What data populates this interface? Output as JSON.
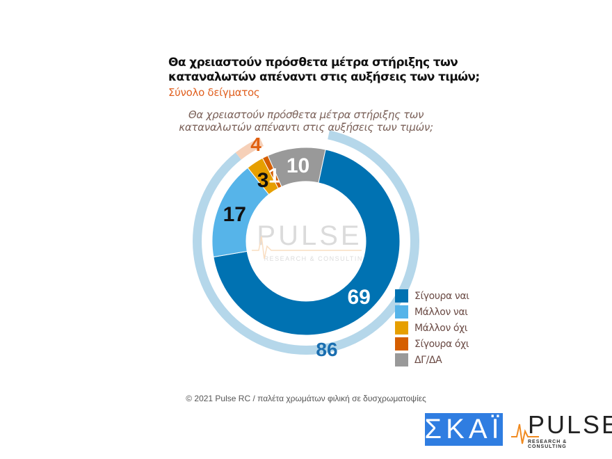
{
  "header": {
    "title_line1": "Θα χρειαστούν πρόσθετα μέτρα στήριξης των",
    "title_line2": "καταναλωτών απέναντι στις αυξήσεις των τιμών;",
    "subtitle": "Σύνολο δείγματος"
  },
  "chart_data": {
    "type": "donut",
    "title_line1": "Θα χρειαστούν πρόσθετα μέτρα στήριξης των",
    "title_line2": "καταναλωτών απέναντι στις αυξήσεις των τιμών;",
    "inner": {
      "categories": [
        "Σίγουρα ναι",
        "Μάλλον ναι",
        "Μάλλον όχι",
        "Σίγουρα όχι",
        "ΔΓ/ΔΑ"
      ],
      "values": [
        69,
        17,
        3,
        1,
        10
      ],
      "colors": [
        "#0072b2",
        "#56b4e9",
        "#e69f00",
        "#d55e00",
        "#999999"
      ],
      "label_colors": [
        "#ffffff",
        "#111111",
        "#111111",
        "#ffffff",
        "#ffffff"
      ]
    },
    "outer": {
      "categories": [
        "ναι",
        "όχι"
      ],
      "values": [
        86,
        4
      ],
      "colors": [
        "#b5d7ea",
        "#f6d0b8"
      ],
      "label_colors": [
        "#1a6eb0",
        "#e06010"
      ]
    },
    "legend_position": "right-bottom"
  },
  "watermark": {
    "name": "PULSE",
    "tagline": "RESEARCH & CONSULTING"
  },
  "footer": {
    "text": "© 2021 Pulse RC   /   παλέτα χρωμάτων φιλική σε δυσχρωματοψίες"
  },
  "logos": {
    "skai": "ΣΚΑΪ",
    "pulse": "PULSE",
    "pulse_tagline": "RESEARCH & CONSULTING"
  }
}
